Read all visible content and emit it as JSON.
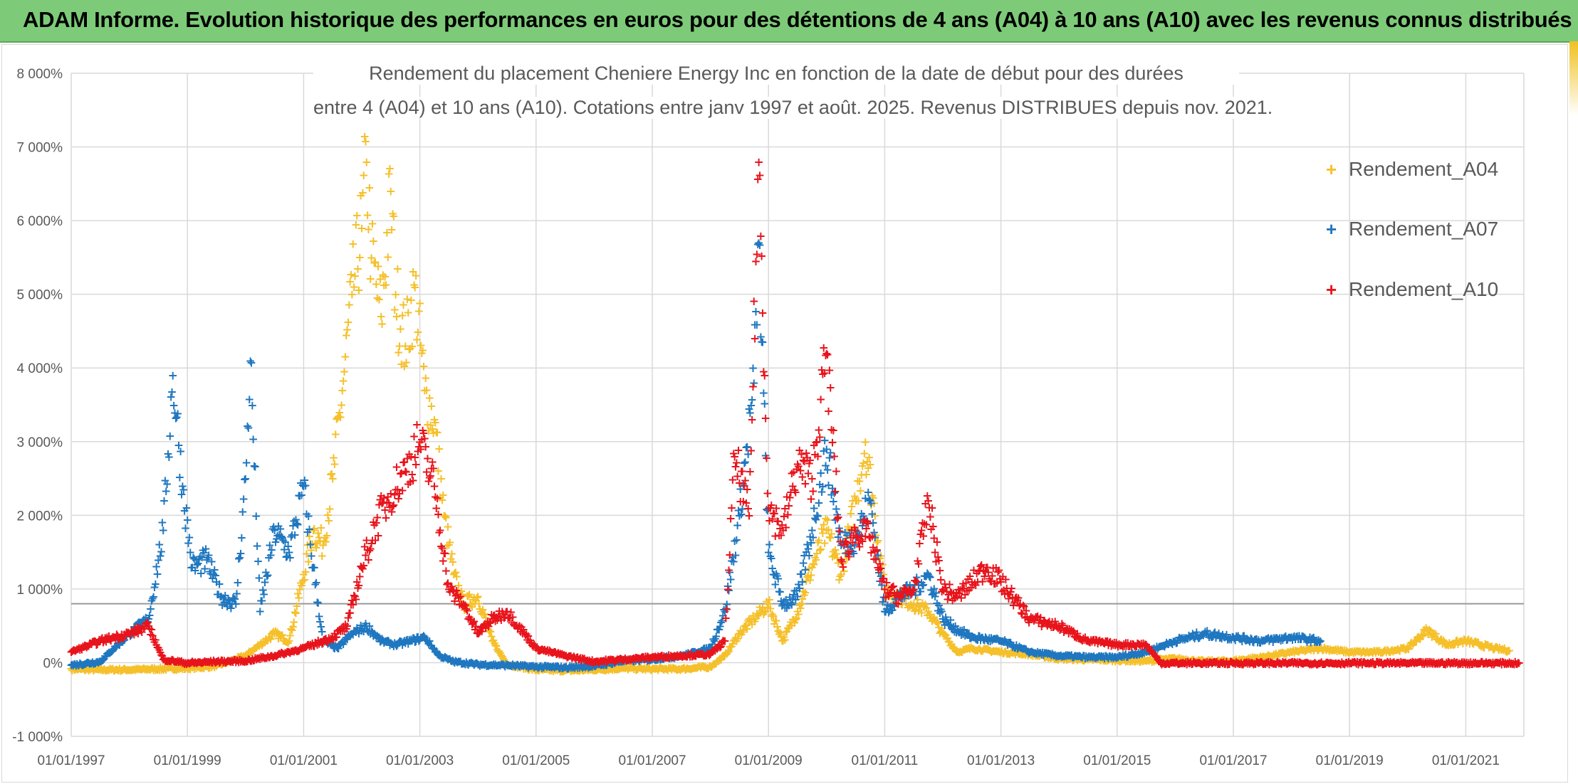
{
  "banner": {
    "title": "ADAM Informe. Evolution historique des performances en euros pour des détentions de 4 ans (A04) à 10 ans (A10) avec les revenus connus distribués"
  },
  "colors": {
    "Rendement_A04": "#f5c02b",
    "Rendement_A07": "#1f77c0",
    "Rendement_A10": "#e8141c",
    "banner": "#7dcb78",
    "grid": "#d9d9d9"
  },
  "chart_data": {
    "type": "scatter",
    "title": "Rendement du placement Cheniere Energy Inc en fonction de la date de début pour des durées",
    "subtitle": "entre 4 (A04) et 10 ans (A10). Cotations entre janv 1997 et août. 2025. Revenus DISTRIBUES depuis nov. 2021.",
    "x_ticks": [
      "01/01/1997",
      "01/01/1999",
      "01/01/2001",
      "01/01/2003",
      "01/01/2005",
      "01/01/2007",
      "01/01/2009",
      "01/01/2011",
      "01/01/2013",
      "01/01/2015",
      "01/01/2017",
      "01/01/2019",
      "01/01/2021"
    ],
    "y_ticks": [
      "8 000%",
      "7 000%",
      "6 000%",
      "5 000%",
      "4 000%",
      "3 000%",
      "2 000%",
      "1 000%",
      "0%",
      "-1 000%"
    ],
    "xlim": [
      "1997-01-01",
      "2022-01-01"
    ],
    "ylim": [
      -1000,
      8000
    ],
    "reference_line_y": 800,
    "legend_position": "top-right",
    "series": [
      {
        "name": "Rendement_A04",
        "points": [
          [
            "1997-01",
            -80
          ],
          [
            "1997-07",
            -90
          ],
          [
            "1998-01",
            -90
          ],
          [
            "1998-07",
            -80
          ],
          [
            "1999-01",
            -70
          ],
          [
            "1999-07",
            -40
          ],
          [
            "2000-01",
            100
          ],
          [
            "2000-04",
            250
          ],
          [
            "2000-07",
            400
          ],
          [
            "2000-10",
            300
          ],
          [
            "2001-01",
            1200
          ],
          [
            "2001-03",
            1800
          ],
          [
            "2001-05",
            1600
          ],
          [
            "2001-07",
            2500
          ],
          [
            "2001-09",
            3700
          ],
          [
            "2001-11",
            5000
          ],
          [
            "2002-01",
            5900
          ],
          [
            "2002-02",
            6800
          ],
          [
            "2002-03",
            5500
          ],
          [
            "2002-05",
            4700
          ],
          [
            "2002-07",
            6400
          ],
          [
            "2002-08",
            5000
          ],
          [
            "2002-10",
            4300
          ],
          [
            "2002-12",
            5100
          ],
          [
            "2003-02",
            3700
          ],
          [
            "2003-04",
            3300
          ],
          [
            "2003-06",
            2000
          ],
          [
            "2003-08",
            1200
          ],
          [
            "2003-10",
            800
          ],
          [
            "2004-01",
            900
          ],
          [
            "2004-04",
            300
          ],
          [
            "2004-07",
            -20
          ],
          [
            "2005-01",
            -90
          ],
          [
            "2005-07",
            -100
          ],
          [
            "2006-01",
            -90
          ],
          [
            "2006-07",
            -70
          ],
          [
            "2007-01",
            -80
          ],
          [
            "2007-07",
            -80
          ],
          [
            "2008-01",
            -50
          ],
          [
            "2008-04",
            100
          ],
          [
            "2008-07",
            400
          ],
          [
            "2008-10",
            600
          ],
          [
            "2009-01",
            800
          ],
          [
            "2009-04",
            300
          ],
          [
            "2009-07",
            700
          ],
          [
            "2009-10",
            1300
          ],
          [
            "2010-01",
            1800
          ],
          [
            "2010-04",
            1200
          ],
          [
            "2010-07",
            2200
          ],
          [
            "2010-09",
            3000
          ],
          [
            "2010-11",
            2000
          ],
          [
            "2011-01",
            1000
          ],
          [
            "2011-04",
            900
          ],
          [
            "2011-07",
            800
          ],
          [
            "2011-10",
            700
          ],
          [
            "2012-01",
            400
          ],
          [
            "2012-04",
            150
          ],
          [
            "2012-07",
            200
          ],
          [
            "2013-01",
            150
          ],
          [
            "2013-07",
            120
          ],
          [
            "2014-01",
            60
          ],
          [
            "2014-07",
            50
          ],
          [
            "2015-01",
            40
          ],
          [
            "2015-07",
            30
          ],
          [
            "2016-01",
            60
          ],
          [
            "2016-07",
            20
          ],
          [
            "2017-01",
            30
          ],
          [
            "2017-07",
            80
          ],
          [
            "2018-01",
            150
          ],
          [
            "2018-07",
            200
          ],
          [
            "2019-01",
            150
          ],
          [
            "2019-07",
            150
          ],
          [
            "2020-01",
            200
          ],
          [
            "2020-05",
            450
          ],
          [
            "2020-09",
            250
          ],
          [
            "2021-01",
            300
          ],
          [
            "2021-07",
            200
          ],
          [
            "2021-10",
            170
          ]
        ]
      },
      {
        "name": "Rendement_A07",
        "points": [
          [
            "1997-01",
            -30
          ],
          [
            "1997-07",
            20
          ],
          [
            "1998-01",
            400
          ],
          [
            "1998-05",
            600
          ],
          [
            "1998-08",
            1800
          ],
          [
            "1998-10",
            3900
          ],
          [
            "1998-12",
            2400
          ],
          [
            "1999-02",
            1300
          ],
          [
            "1999-05",
            1400
          ],
          [
            "1999-08",
            900
          ],
          [
            "1999-11",
            800
          ],
          [
            "2000-01",
            2500
          ],
          [
            "2000-02",
            4100
          ],
          [
            "2000-04",
            700
          ],
          [
            "2000-07",
            1800
          ],
          [
            "2000-10",
            1500
          ],
          [
            "2001-01",
            2400
          ],
          [
            "2001-03",
            1300
          ],
          [
            "2001-05",
            300
          ],
          [
            "2001-08",
            200
          ],
          [
            "2001-11",
            400
          ],
          [
            "2002-02",
            500
          ],
          [
            "2002-05",
            300
          ],
          [
            "2002-08",
            250
          ],
          [
            "2002-11",
            300
          ],
          [
            "2003-02",
            350
          ],
          [
            "2003-05",
            100
          ],
          [
            "2003-08",
            20
          ],
          [
            "2004-01",
            -20
          ],
          [
            "2004-07",
            -30
          ],
          [
            "2005-01",
            -50
          ],
          [
            "2005-07",
            -60
          ],
          [
            "2006-01",
            -40
          ],
          [
            "2006-07",
            30
          ],
          [
            "2007-01",
            50
          ],
          [
            "2007-07",
            100
          ],
          [
            "2008-01",
            200
          ],
          [
            "2008-04",
            700
          ],
          [
            "2008-07",
            2000
          ],
          [
            "2008-10",
            3800
          ],
          [
            "2008-11",
            5700
          ],
          [
            "2009-01",
            1500
          ],
          [
            "2009-04",
            800
          ],
          [
            "2009-07",
            900
          ],
          [
            "2009-10",
            1800
          ],
          [
            "2010-01",
            2900
          ],
          [
            "2010-04",
            1600
          ],
          [
            "2010-07",
            1700
          ],
          [
            "2010-10",
            2200
          ],
          [
            "2011-01",
            700
          ],
          [
            "2011-04",
            900
          ],
          [
            "2011-07",
            1000
          ],
          [
            "2011-10",
            1200
          ],
          [
            "2012-01",
            600
          ],
          [
            "2012-04",
            450
          ],
          [
            "2012-07",
            350
          ],
          [
            "2013-01",
            300
          ],
          [
            "2013-07",
            150
          ],
          [
            "2014-01",
            100
          ],
          [
            "2014-07",
            80
          ],
          [
            "2015-01",
            80
          ],
          [
            "2015-07",
            150
          ],
          [
            "2016-01",
            300
          ],
          [
            "2016-07",
            400
          ],
          [
            "2017-01",
            350
          ],
          [
            "2017-07",
            300
          ],
          [
            "2018-01",
            350
          ],
          [
            "2018-07",
            300
          ]
        ]
      },
      {
        "name": "Rendement_A10",
        "points": [
          [
            "1997-01",
            150
          ],
          [
            "1997-07",
            300
          ],
          [
            "1998-01",
            400
          ],
          [
            "1998-05",
            500
          ],
          [
            "1998-08",
            50
          ],
          [
            "1999-01",
            0
          ],
          [
            "1999-07",
            20
          ],
          [
            "2000-01",
            30
          ],
          [
            "2000-07",
            100
          ],
          [
            "2001-01",
            200
          ],
          [
            "2001-07",
            350
          ],
          [
            "2001-10",
            500
          ],
          [
            "2002-01",
            1300
          ],
          [
            "2002-04",
            1900
          ],
          [
            "2002-07",
            2300
          ],
          [
            "2002-10",
            2600
          ],
          [
            "2003-01",
            3000
          ],
          [
            "2003-04",
            2400
          ],
          [
            "2003-07",
            1000
          ],
          [
            "2003-10",
            800
          ],
          [
            "2004-01",
            400
          ],
          [
            "2004-04",
            600
          ],
          [
            "2004-07",
            700
          ],
          [
            "2005-01",
            200
          ],
          [
            "2005-07",
            100
          ],
          [
            "2006-01",
            20
          ],
          [
            "2006-07",
            50
          ],
          [
            "2007-01",
            80
          ],
          [
            "2007-07",
            100
          ],
          [
            "2008-01",
            120
          ],
          [
            "2008-04",
            300
          ],
          [
            "2008-06",
            2800
          ],
          [
            "2008-09",
            2000
          ],
          [
            "2008-11",
            6800
          ],
          [
            "2009-01",
            2100
          ],
          [
            "2009-04",
            1800
          ],
          [
            "2009-07",
            2700
          ],
          [
            "2009-10",
            2500
          ],
          [
            "2010-01",
            4200
          ],
          [
            "2010-04",
            1400
          ],
          [
            "2010-07",
            1800
          ],
          [
            "2010-10",
            1700
          ],
          [
            "2011-01",
            1000
          ],
          [
            "2011-04",
            900
          ],
          [
            "2011-07",
            1000
          ],
          [
            "2011-10",
            2200
          ],
          [
            "2012-01",
            1000
          ],
          [
            "2012-04",
            900
          ],
          [
            "2012-07",
            1100
          ],
          [
            "2012-10",
            1300
          ],
          [
            "2013-01",
            1100
          ],
          [
            "2013-07",
            600
          ],
          [
            "2014-01",
            500
          ],
          [
            "2014-07",
            300
          ],
          [
            "2015-01",
            250
          ],
          [
            "2015-07",
            250
          ],
          [
            "2015-10",
            0
          ],
          [
            "2016-07",
            0
          ],
          [
            "2017-07",
            0
          ],
          [
            "2018-07",
            0
          ],
          [
            "2019-07",
            0
          ],
          [
            "2020-07",
            0
          ],
          [
            "2021-07",
            0
          ],
          [
            "2021-12",
            0
          ]
        ]
      }
    ]
  }
}
